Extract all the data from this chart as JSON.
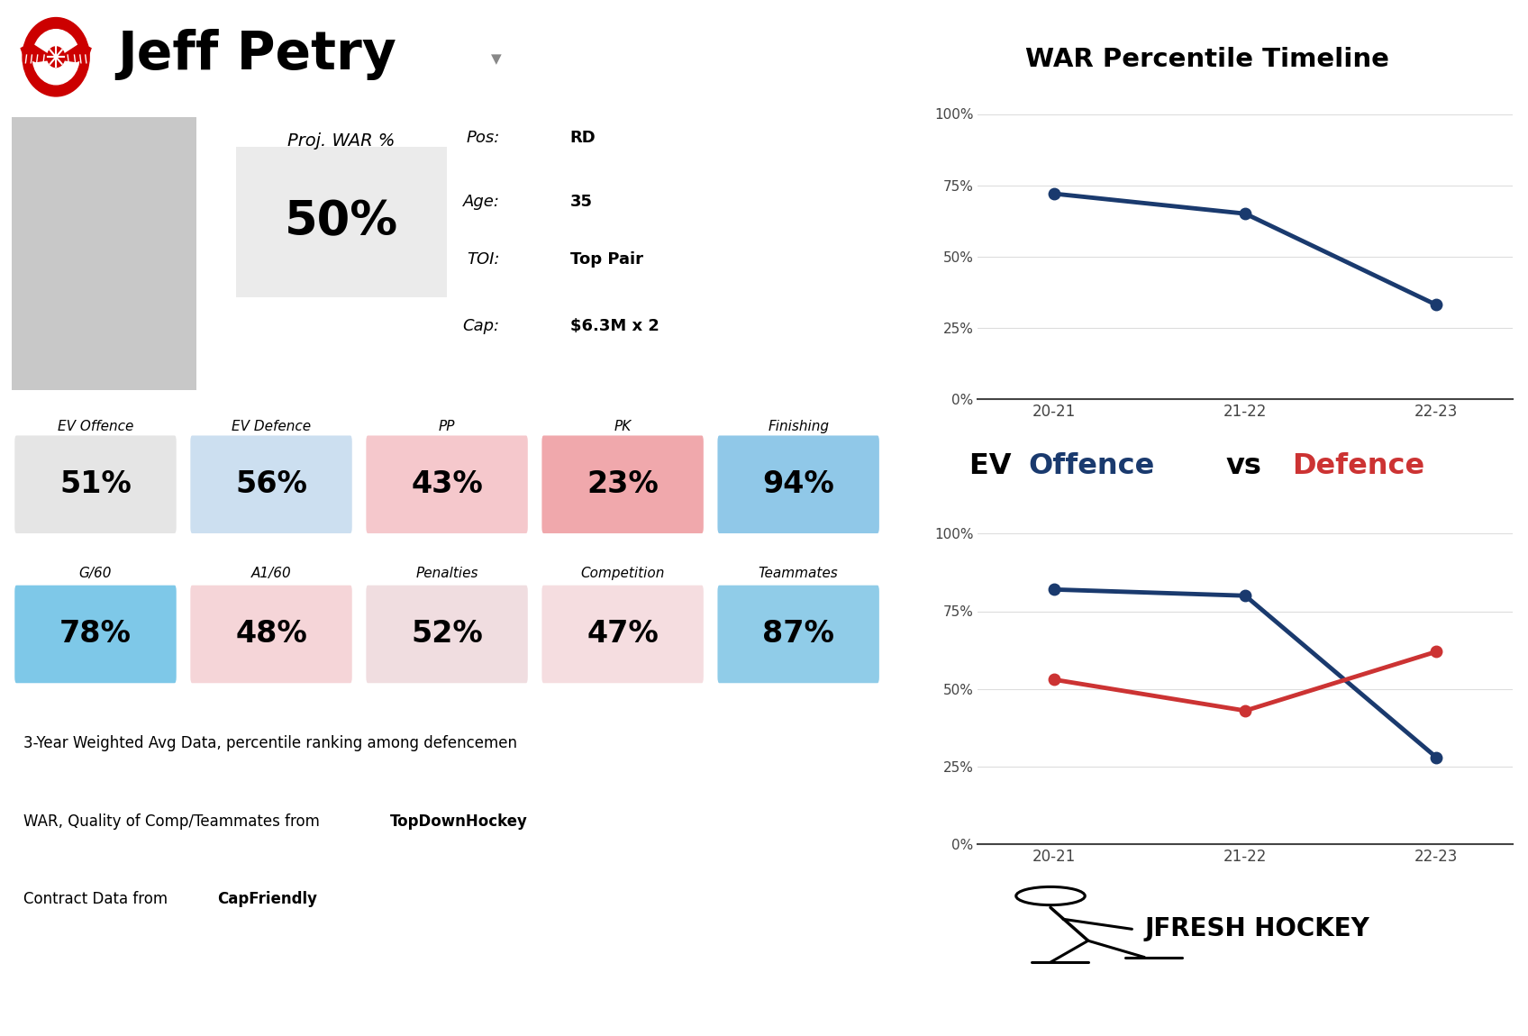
{
  "player_name": "Jeff Petry",
  "proj_war_pct": "50%",
  "pos": "RD",
  "age": "35",
  "toi": "Top Pair",
  "cap": "$6.3M x 2",
  "stats_row1_labels": [
    "EV Offence",
    "EV Defence",
    "PP",
    "PK",
    "Finishing"
  ],
  "stats_row1_values": [
    "51%",
    "56%",
    "43%",
    "23%",
    "94%"
  ],
  "stats_row1_colors": [
    "#e5e5e5",
    "#ccdff0",
    "#f5c8cc",
    "#f0a8ac",
    "#90c8e8"
  ],
  "stats_row2_labels": [
    "G/60",
    "A1/60",
    "Penalties",
    "Competition",
    "Teammates"
  ],
  "stats_row2_values": [
    "78%",
    "48%",
    "52%",
    "47%",
    "87%"
  ],
  "stats_row2_colors": [
    "#7ec8e8",
    "#f5d5d8",
    "#f0dde0",
    "#f5dde0",
    "#90cce8"
  ],
  "war_years": [
    "20-21",
    "21-22",
    "22-23"
  ],
  "war_values": [
    72,
    65,
    33
  ],
  "ev_off_values": [
    82,
    80,
    28
  ],
  "ev_def_values": [
    53,
    43,
    62
  ],
  "war_title": "WAR Percentile Timeline",
  "footnote1": "3-Year Weighted Avg Data, percentile ranking among defencemen",
  "footnote2_pre": "WAR, Quality of Comp/Teammates from ",
  "footnote2_bold": "TopDownHockey",
  "footnote3_pre": "Contract Data from ",
  "footnote3_bold": "CapFriendly",
  "bg_color": "#ffffff",
  "line_color_war": "#1a3a6e",
  "line_color_off": "#1a3a6e",
  "line_color_def": "#cc3333",
  "proj_war_bg": "#ebebeb",
  "logo_color": "#CC0000",
  "arrow_color": "#888888",
  "photo_bg": "#c8c8c8"
}
